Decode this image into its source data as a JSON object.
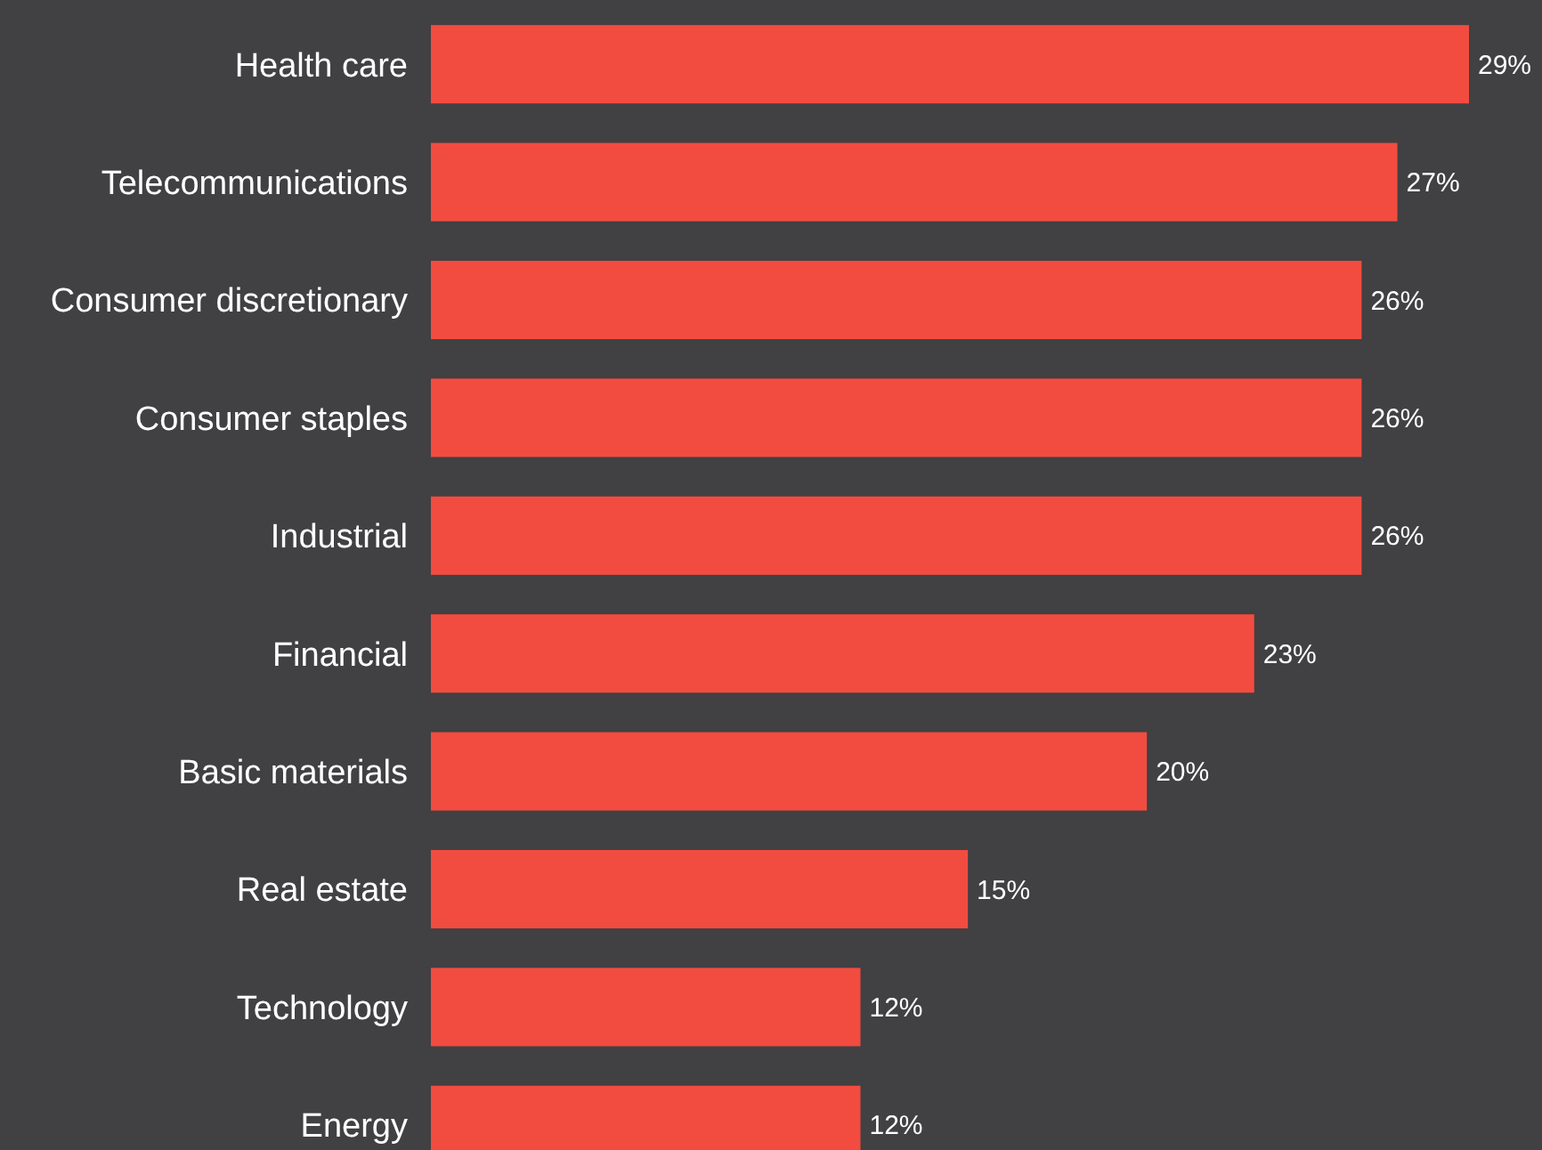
{
  "chart_data": {
    "type": "bar",
    "orientation": "horizontal",
    "categories": [
      "Health care",
      "Telecommunications",
      "Consumer discretionary",
      "Consumer staples",
      "Industrial",
      "Financial",
      "Basic materials",
      "Real estate",
      "Technology",
      "Energy"
    ],
    "values": [
      29,
      27,
      26,
      26,
      26,
      23,
      20,
      15,
      12,
      12
    ],
    "value_labels": [
      "29%",
      "27%",
      "26%",
      "26%",
      "26%",
      "23%",
      "20%",
      "15%",
      "12%",
      "12%"
    ],
    "color": "#f24c40"
  }
}
